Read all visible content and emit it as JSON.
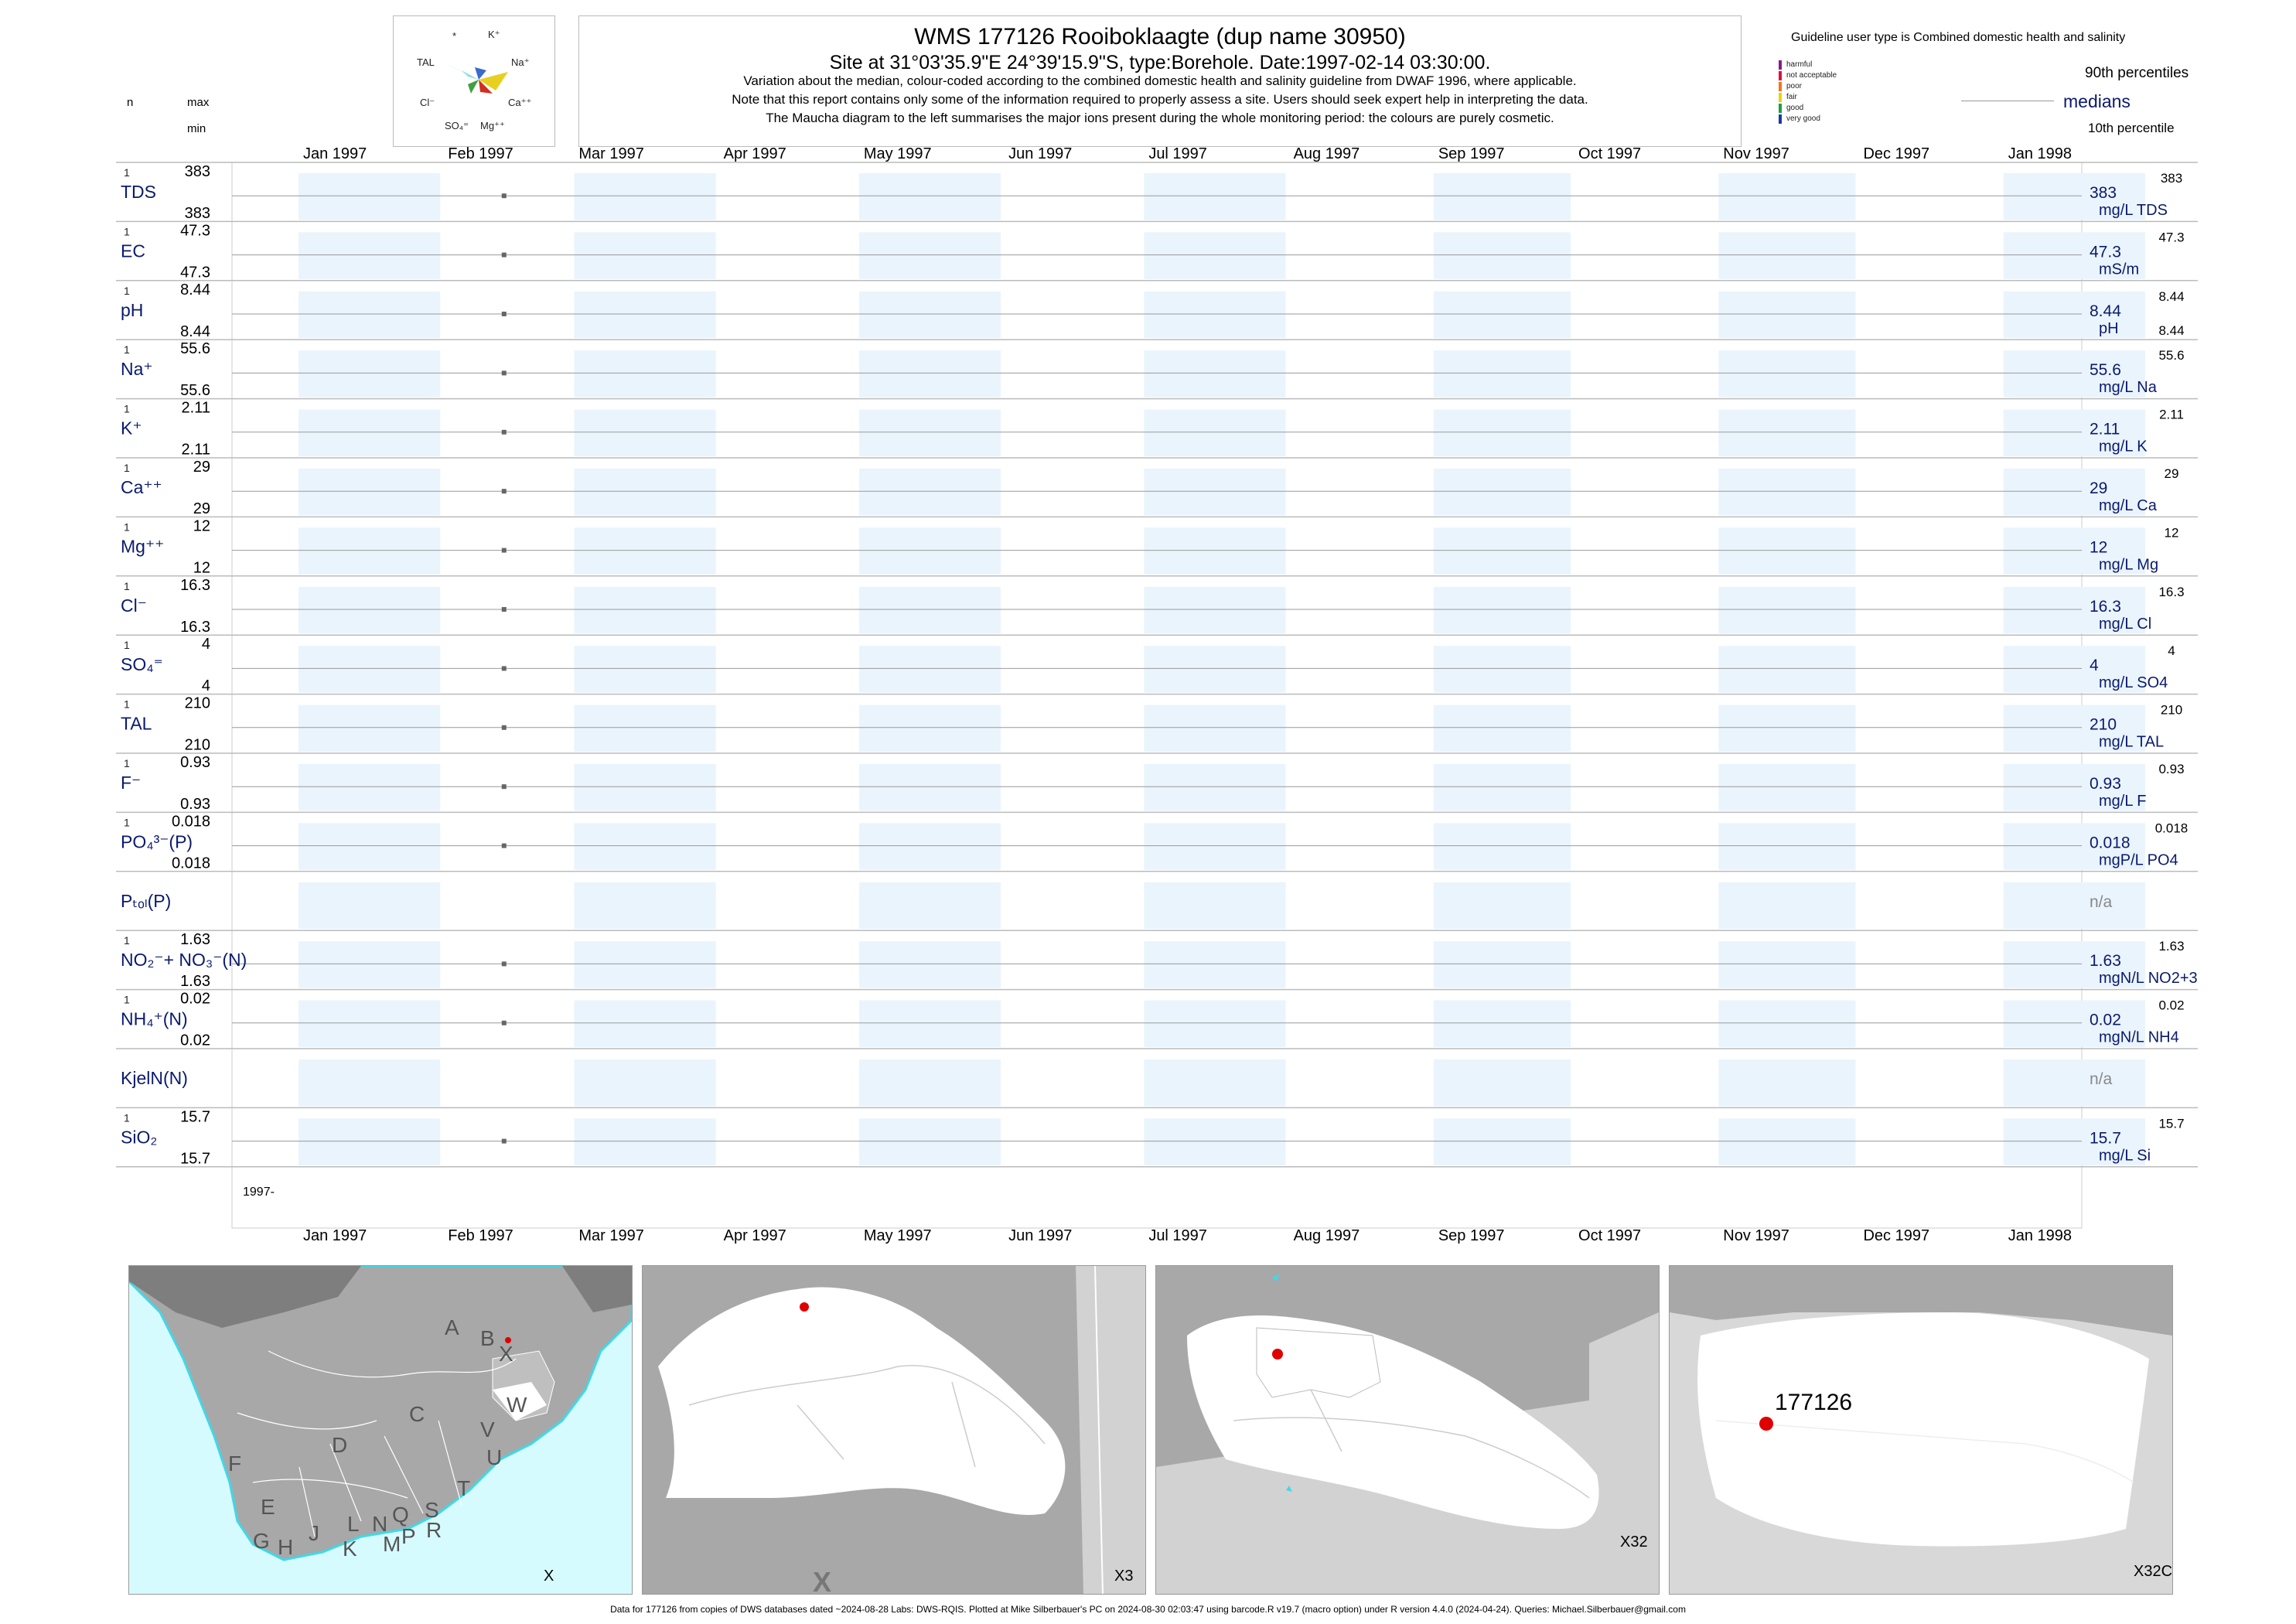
{
  "header": {
    "title": "WMS 177126  Rooiboklaagte (dup name 30950)",
    "site": "Site at 31°03'35.9\"E 24°39'15.9\"S, type:Borehole. Date:1997-02-14 03:30:00.",
    "note1": "Variation about the median,  colour-coded according to the combined domestic health and salinity guideline from DWAF 1996, where applicable.",
    "note2": "Note that this report contains only some of the information required to properly assess a site. Users should seek expert help in interpreting the data.",
    "note3": "The Maucha diagram to the left summarises the major ions present during the whole monitoring period: the colours are purely cosmetic."
  },
  "maucha": {
    "labels": {
      "star": "*",
      "k": "K⁺",
      "tal": "TAL",
      "na": "Na⁺",
      "cl": "Cl⁻",
      "ca": "Ca⁺⁺",
      "so4": "SO₄⁼",
      "mg": "Mg⁺⁺"
    }
  },
  "column_headers": {
    "n": "n",
    "max": "max",
    "min": "min"
  },
  "legend": {
    "guideline": "Guideline user type is Combined domestic health and salinity",
    "p90": "90th percentiles",
    "medians": "medians",
    "p10": "10th percentile",
    "classes": [
      {
        "label": "harmful",
        "color": "#8b1a8b"
      },
      {
        "label": "not acceptable",
        "color": "#e0103a"
      },
      {
        "label": "poor",
        "color": "#f07818"
      },
      {
        "label": "fair",
        "color": "#f0d010"
      },
      {
        "label": "good",
        "color": "#20a040"
      },
      {
        "label": "very good",
        "color": "#1a3aa0"
      }
    ]
  },
  "months": [
    "Jan 1997",
    "Feb 1997",
    "Mar 1997",
    "Apr 1997",
    "May 1997",
    "Jun 1997",
    "Jul 1997",
    "Aug 1997",
    "Sep 1997",
    "Oct 1997",
    "Nov 1997",
    "Dec 1997",
    "Jan 1998"
  ],
  "year_label": "1997-",
  "sample_date": "1997-02-14",
  "rows": [
    {
      "label": "TDS",
      "n": "1",
      "max": "383",
      "min": "383",
      "value": "383",
      "unit": "mg/L TDS",
      "rmax": "383",
      "rmin": ""
    },
    {
      "label": "EC",
      "n": "1",
      "max": "47.3",
      "min": "47.3",
      "value": "47.3",
      "unit": "mS/m",
      "rmax": "47.3",
      "rmin": ""
    },
    {
      "label": "pH",
      "n": "1",
      "max": "8.44",
      "min": "8.44",
      "value": "8.44",
      "unit": "pH",
      "rmax": "8.44",
      "rmin": "8.44"
    },
    {
      "label": "Na⁺",
      "n": "1",
      "max": "55.6",
      "min": "55.6",
      "value": "55.6",
      "unit": "mg/L Na",
      "rmax": "55.6",
      "rmin": ""
    },
    {
      "label": "K⁺",
      "n": "1",
      "max": "2.11",
      "min": "2.11",
      "value": "2.11",
      "unit": "mg/L K",
      "rmax": "2.11",
      "rmin": ""
    },
    {
      "label": "Ca⁺⁺",
      "n": "1",
      "max": "29",
      "min": "29",
      "value": "29",
      "unit": "mg/L Ca",
      "rmax": "29",
      "rmin": ""
    },
    {
      "label": "Mg⁺⁺",
      "n": "1",
      "max": "12",
      "min": "12",
      "value": "12",
      "unit": "mg/L Mg",
      "rmax": "12",
      "rmin": ""
    },
    {
      "label": "Cl⁻",
      "n": "1",
      "max": "16.3",
      "min": "16.3",
      "value": "16.3",
      "unit": "mg/L Cl",
      "rmax": "16.3",
      "rmin": ""
    },
    {
      "label": "SO₄⁼",
      "n": "1",
      "max": "4",
      "min": "4",
      "value": "4",
      "unit": "mg/L SO4",
      "rmax": "4",
      "rmin": ""
    },
    {
      "label": "TAL",
      "n": "1",
      "max": "210",
      "min": "210",
      "value": "210",
      "unit": "mg/L TAL",
      "rmax": "210",
      "rmin": ""
    },
    {
      "label": "F⁻",
      "n": "1",
      "max": "0.93",
      "min": "0.93",
      "value": "0.93",
      "unit": "mg/L F",
      "rmax": "0.93",
      "rmin": ""
    },
    {
      "label": "PO₄³⁻(P)",
      "n": "1",
      "max": "0.018",
      "min": "0.018",
      "value": "0.018",
      "unit": "mgP/L PO4",
      "rmax": "0.018",
      "rmin": ""
    },
    {
      "label": "Pₜₒₗ(P)",
      "n": "",
      "max": "",
      "min": "",
      "value": "n/a",
      "unit": "",
      "rmax": "",
      "rmin": ""
    },
    {
      "label": "NO₂⁻+ NO₃⁻(N)",
      "n": "1",
      "max": "1.63",
      "min": "1.63",
      "value": "1.63",
      "unit": "mgN/L NO2+3",
      "rmax": "1.63",
      "rmin": ""
    },
    {
      "label": "NH₄⁺(N)",
      "n": "1",
      "max": "0.02",
      "min": "0.02",
      "value": "0.02",
      "unit": "mgN/L NH4",
      "rmax": "0.02",
      "rmin": ""
    },
    {
      "label": "KjelN(N)",
      "n": "",
      "max": "",
      "min": "",
      "value": "n/a",
      "unit": "",
      "rmax": "",
      "rmin": ""
    },
    {
      "label": "SiO₂",
      "n": "1",
      "max": "15.7",
      "min": "15.7",
      "value": "15.7",
      "unit": "mg/L Si",
      "rmax": "15.7",
      "rmin": ""
    }
  ],
  "chart_data": {
    "type": "scatter",
    "x_range": [
      "1997-01-01",
      "1998-01-31"
    ],
    "series": [
      {
        "parameter": "TDS",
        "x": [
          "1997-02-14"
        ],
        "y": [
          383
        ]
      },
      {
        "parameter": "EC",
        "x": [
          "1997-02-14"
        ],
        "y": [
          47.3
        ]
      },
      {
        "parameter": "pH",
        "x": [
          "1997-02-14"
        ],
        "y": [
          8.44
        ]
      },
      {
        "parameter": "Na",
        "x": [
          "1997-02-14"
        ],
        "y": [
          55.6
        ]
      },
      {
        "parameter": "K",
        "x": [
          "1997-02-14"
        ],
        "y": [
          2.11
        ]
      },
      {
        "parameter": "Ca",
        "x": [
          "1997-02-14"
        ],
        "y": [
          29
        ]
      },
      {
        "parameter": "Mg",
        "x": [
          "1997-02-14"
        ],
        "y": [
          12
        ]
      },
      {
        "parameter": "Cl",
        "x": [
          "1997-02-14"
        ],
        "y": [
          16.3
        ]
      },
      {
        "parameter": "SO4",
        "x": [
          "1997-02-14"
        ],
        "y": [
          4
        ]
      },
      {
        "parameter": "TAL",
        "x": [
          "1997-02-14"
        ],
        "y": [
          210
        ]
      },
      {
        "parameter": "F",
        "x": [
          "1997-02-14"
        ],
        "y": [
          0.93
        ]
      },
      {
        "parameter": "PO4(P)",
        "x": [
          "1997-02-14"
        ],
        "y": [
          0.018
        ]
      },
      {
        "parameter": "Ptot(P)",
        "x": [],
        "y": []
      },
      {
        "parameter": "NO2+NO3(N)",
        "x": [
          "1997-02-14"
        ],
        "y": [
          1.63
        ]
      },
      {
        "parameter": "NH4(N)",
        "x": [
          "1997-02-14"
        ],
        "y": [
          0.02
        ]
      },
      {
        "parameter": "KjelN(N)",
        "x": [],
        "y": []
      },
      {
        "parameter": "SiO2",
        "x": [
          "1997-02-14"
        ],
        "y": [
          15.7
        ]
      }
    ]
  },
  "maps": {
    "labels_sa": [
      "A",
      "B",
      "X",
      "W",
      "C",
      "V",
      "U",
      "D",
      "F",
      "T",
      "E",
      "S",
      "R",
      "Q",
      "P",
      "N",
      "L",
      "M",
      "K",
      "J",
      "H",
      "G"
    ],
    "caption1": "X",
    "caption2": "X3",
    "caption3": "X32",
    "caption4": "X32C",
    "ghost_label": "X",
    "site_id": "177126"
  },
  "footer": "Data for 177126 from copies of DWS databases dated ~2024-08-28 Labs: DWS-RQIS. Plotted at Mike Silberbauer's PC on 2024-08-30 02:03:47 using barcode.R v19.7 (macro option) under R version 4.4.0 (2024-04-24). Queries: Michael.Silberbauer@gmail.com"
}
